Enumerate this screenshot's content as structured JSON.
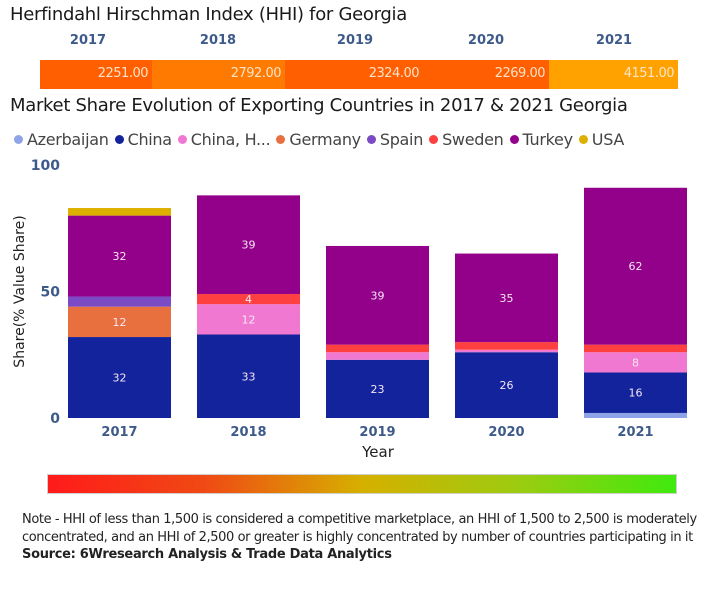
{
  "hhi": {
    "title": "Herfindahl Hirschman Index (HHI) for Georgia",
    "items": [
      {
        "year": "2017",
        "value": "2251.00",
        "color": "#ff5f00"
      },
      {
        "year": "2018",
        "value": "2792.00",
        "color": "#ff7a00"
      },
      {
        "year": "2019",
        "value": "2324.00",
        "color": "#ff5f00"
      },
      {
        "year": "2020",
        "value": "2269.00",
        "color": "#ff5f00"
      },
      {
        "year": "2021",
        "value": "4151.00",
        "color": "#ffa200"
      }
    ]
  },
  "chart_data": {
    "type": "bar",
    "stacked": true,
    "title": "Market Share Evolution of Exporting Countries in 2017 & 2021 Georgia",
    "xlabel": "Year",
    "ylabel": "Share(% Value Share)",
    "ylim": [
      0,
      100
    ],
    "yticks": [
      "0",
      "50",
      "100"
    ],
    "categories": [
      "2017",
      "2018",
      "2019",
      "2020",
      "2021"
    ],
    "legend_position": "top-left",
    "series": [
      {
        "name": "Azerbaijan",
        "color": "#8fa4e6",
        "values": [
          0,
          0,
          0,
          0,
          2
        ],
        "labels": [
          false,
          false,
          false,
          false,
          false
        ]
      },
      {
        "name": "China",
        "color": "#13239b",
        "values": [
          32,
          33,
          23,
          26,
          16
        ],
        "labels": [
          true,
          true,
          true,
          true,
          true
        ]
      },
      {
        "name": "China, H...",
        "color": "#f078d0",
        "values": [
          0,
          12,
          3,
          1,
          8
        ],
        "labels": [
          false,
          true,
          false,
          false,
          true
        ]
      },
      {
        "name": "Germany",
        "color": "#e8703e",
        "values": [
          12,
          0,
          0,
          0,
          0
        ],
        "labels": [
          true,
          false,
          false,
          false,
          false
        ]
      },
      {
        "name": "Spain",
        "color": "#7a4bc4",
        "values": [
          4,
          0,
          0,
          0,
          0
        ],
        "labels": [
          false,
          false,
          false,
          false,
          false
        ]
      },
      {
        "name": "Sweden",
        "color": "#ff4040",
        "values": [
          0,
          4,
          3,
          3,
          3
        ],
        "labels": [
          false,
          true,
          false,
          false,
          false
        ]
      },
      {
        "name": "Turkey",
        "color": "#930089",
        "values": [
          32,
          39,
          39,
          35,
          62
        ],
        "labels": [
          true,
          true,
          true,
          true,
          true
        ]
      },
      {
        "name": "USA",
        "color": "#ddb000",
        "values": [
          3,
          0,
          0,
          0,
          0
        ],
        "labels": [
          false,
          false,
          false,
          false,
          false
        ]
      }
    ]
  },
  "scale": {
    "gradient_start": "#ff1a1a",
    "gradient_mid": "#d6b000",
    "gradient_end": "#3fea0e"
  },
  "note": "Note - HHI of less than 1,500 is considered a competitive marketplace, an HHI of 1,500 to 2,500 is moderately concentrated, and an HHI of 2,500 or greater is highly concentrated by number of countries participating in it",
  "source": "Source: 6Wresearch Analysis & Trade Data Analytics"
}
